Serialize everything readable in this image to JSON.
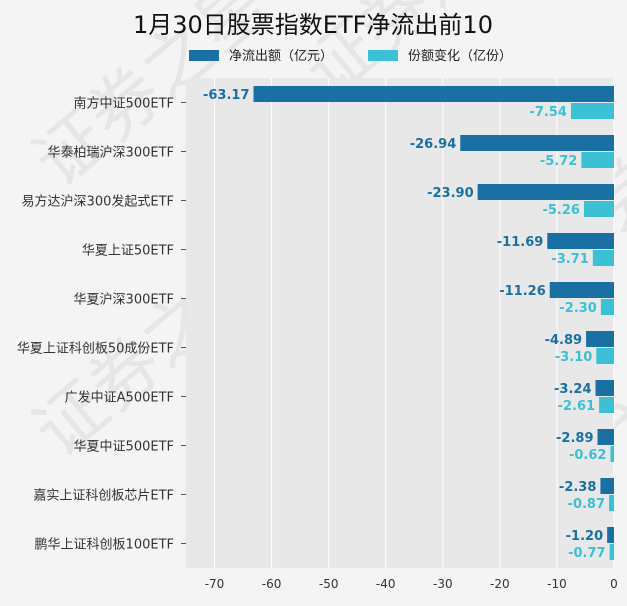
{
  "chart_data": {
    "type": "bar",
    "orientation": "horizontal",
    "title": "1月30日股票指数ETF净流出前10",
    "legend_position": "top",
    "grid": "x",
    "xlim": [
      -75,
      0
    ],
    "xticks": [
      -70,
      -60,
      -50,
      -40,
      -30,
      -20,
      -10,
      0
    ],
    "categories": [
      "南方中证500ETF",
      "华泰柏瑞沪深300ETF",
      "易方达沪深300发起式ETF",
      "华夏上证50ETF",
      "华夏沪深300ETF",
      "华夏上证科创板50成份ETF",
      "广发中证A500ETF",
      "华夏中证500ETF",
      "嘉实上证科创板芯片ETF",
      "鹏华上证科创板100ETF"
    ],
    "series": [
      {
        "name": "净流出额（亿元）",
        "color": "#1a6fa3",
        "values": [
          -63.17,
          -26.94,
          -23.9,
          -11.69,
          -11.26,
          -4.89,
          -3.24,
          -2.89,
          -2.38,
          -1.2
        ],
        "labels": [
          "-63.17",
          "-26.94",
          "-23.90",
          "-11.69",
          "-11.26",
          "-4.89",
          "-3.24",
          "-2.89",
          "-2.38",
          "-1.20"
        ]
      },
      {
        "name": "份额变化（亿份）",
        "color": "#3cc0d4",
        "values": [
          -7.54,
          -5.72,
          -5.26,
          -3.71,
          -2.3,
          -3.1,
          -2.61,
          -0.62,
          -0.87,
          -0.77
        ],
        "labels": [
          "-7.54",
          "-5.72",
          "-5.26",
          "-3.71",
          "-2.30",
          "-3.10",
          "-2.61",
          "-0.62",
          "-0.87",
          "-0.77"
        ]
      }
    ],
    "watermark": "证券之星"
  }
}
